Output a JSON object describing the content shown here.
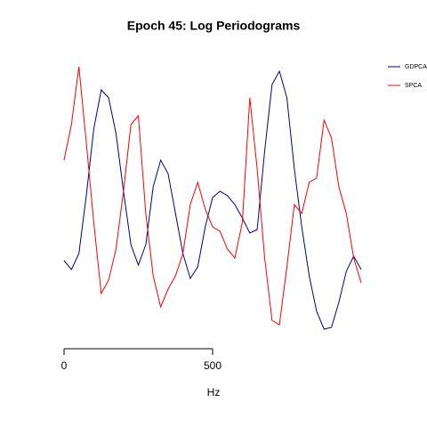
{
  "chart_data": {
    "type": "line",
    "title": "Epoch 45: Log Periodograms",
    "x_label": "Hz",
    "x": [
      0,
      25,
      50,
      75,
      100,
      125,
      150,
      175,
      200,
      225,
      250,
      275,
      300,
      325,
      350,
      375,
      400,
      425,
      450,
      475,
      500,
      525,
      550,
      575,
      600,
      625,
      650,
      675,
      700,
      725,
      750,
      775,
      800,
      825,
      850,
      875,
      900,
      925,
      950,
      975,
      1000
    ],
    "series": [
      {
        "name": "GDPCA",
        "color": "#00008b",
        "values": [
          107,
          97,
          115,
          180,
          255,
          299,
          290,
          250,
          185,
          125,
          102,
          125,
          190,
          220,
          205,
          160,
          115,
          87,
          100,
          145,
          178,
          185,
          180,
          170,
          155,
          138,
          142,
          230,
          305,
          320,
          290,
          210,
          145,
          90,
          50,
          30,
          32,
          60,
          95,
          112,
          97
        ]
      },
      {
        "name": "SPCA",
        "color": "#ff0000",
        "values": [
          220,
          260,
          325,
          240,
          150,
          70,
          85,
          120,
          185,
          260,
          270,
          160,
          90,
          55,
          75,
          90,
          115,
          170,
          195,
          165,
          145,
          140,
          120,
          110,
          150,
          290,
          210,
          110,
          40,
          35,
          100,
          170,
          160,
          195,
          200,
          265,
          245,
          190,
          160,
          110,
          82
        ]
      }
    ],
    "xlim": [
      0,
      1000
    ],
    "xticks": [
      0,
      500
    ],
    "ylim": [
      15,
      335
    ],
    "legend": "top-right"
  }
}
